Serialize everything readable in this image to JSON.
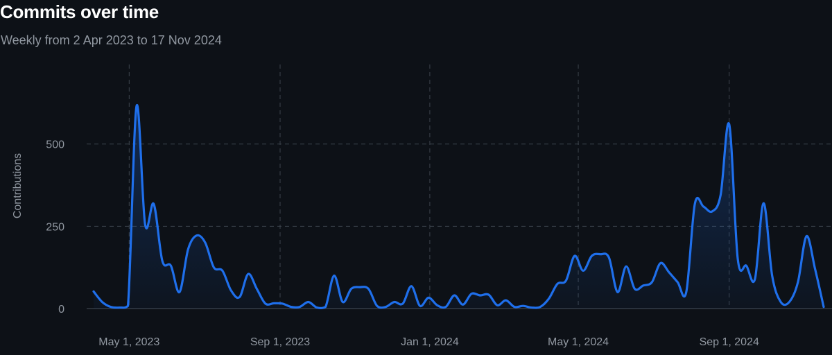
{
  "header": {
    "title": "Commits over time",
    "subtitle": "Weekly from 2 Apr 2023 to 17 Nov 2024"
  },
  "colors": {
    "background": "#0d1117",
    "line": "#1f6feb",
    "area_fill": "#1f6feb",
    "grid": "#3d444d",
    "axis_text": "#9198a1",
    "baseline": "#3d444d"
  },
  "chart_data": {
    "type": "area",
    "title": "Commits over time",
    "subtitle": "Weekly from 2 Apr 2023 to 17 Nov 2024",
    "xlabel": "",
    "ylabel": "Contributions",
    "x_range": [
      "2023-04-02",
      "2024-11-17"
    ],
    "ylim": [
      0,
      650
    ],
    "y_ticks": [
      0,
      250,
      500
    ],
    "x_ticks": [
      {
        "date": "2023-05-01",
        "label": "May 1, 2023"
      },
      {
        "date": "2023-09-01",
        "label": "Sep 1, 2023"
      },
      {
        "date": "2024-01-01",
        "label": "Jan 1, 2024"
      },
      {
        "date": "2024-05-01",
        "label": "May 1, 2024"
      },
      {
        "date": "2024-09-01",
        "label": "Sep 1, 2024"
      }
    ],
    "grid": {
      "horizontal": true,
      "vertical": true,
      "style": "dashed"
    },
    "legend": "none",
    "series": [
      {
        "points": [
          [
            "2023-04-02",
            52
          ],
          [
            "2023-04-09",
            20
          ],
          [
            "2023-04-16",
            5
          ],
          [
            "2023-04-23",
            3
          ],
          [
            "2023-04-30",
            8
          ],
          [
            "2023-05-07",
            615
          ],
          [
            "2023-05-14",
            255
          ],
          [
            "2023-05-21",
            318
          ],
          [
            "2023-05-28",
            145
          ],
          [
            "2023-06-04",
            130
          ],
          [
            "2023-06-11",
            50
          ],
          [
            "2023-06-18",
            180
          ],
          [
            "2023-06-25",
            222
          ],
          [
            "2023-07-02",
            200
          ],
          [
            "2023-07-09",
            125
          ],
          [
            "2023-07-16",
            115
          ],
          [
            "2023-07-23",
            55
          ],
          [
            "2023-07-30",
            35
          ],
          [
            "2023-08-06",
            105
          ],
          [
            "2023-08-13",
            60
          ],
          [
            "2023-08-20",
            15
          ],
          [
            "2023-08-27",
            16
          ],
          [
            "2023-09-03",
            15
          ],
          [
            "2023-09-10",
            5
          ],
          [
            "2023-09-17",
            5
          ],
          [
            "2023-09-24",
            20
          ],
          [
            "2023-10-01",
            3
          ],
          [
            "2023-10-08",
            5
          ],
          [
            "2023-10-15",
            100
          ],
          [
            "2023-10-22",
            20
          ],
          [
            "2023-10-29",
            60
          ],
          [
            "2023-11-05",
            65
          ],
          [
            "2023-11-12",
            60
          ],
          [
            "2023-11-19",
            8
          ],
          [
            "2023-11-26",
            5
          ],
          [
            "2023-12-03",
            20
          ],
          [
            "2023-12-10",
            15
          ],
          [
            "2023-12-17",
            68
          ],
          [
            "2023-12-24",
            8
          ],
          [
            "2023-12-31",
            33
          ],
          [
            "2024-01-07",
            10
          ],
          [
            "2024-01-14",
            5
          ],
          [
            "2024-01-21",
            40
          ],
          [
            "2024-01-28",
            12
          ],
          [
            "2024-02-04",
            45
          ],
          [
            "2024-02-11",
            40
          ],
          [
            "2024-02-18",
            42
          ],
          [
            "2024-02-25",
            10
          ],
          [
            "2024-03-03",
            25
          ],
          [
            "2024-03-10",
            5
          ],
          [
            "2024-03-17",
            8
          ],
          [
            "2024-03-24",
            3
          ],
          [
            "2024-03-31",
            5
          ],
          [
            "2024-04-07",
            30
          ],
          [
            "2024-04-14",
            75
          ],
          [
            "2024-04-21",
            85
          ],
          [
            "2024-04-28",
            160
          ],
          [
            "2024-05-05",
            115
          ],
          [
            "2024-05-12",
            160
          ],
          [
            "2024-05-19",
            165
          ],
          [
            "2024-05-26",
            155
          ],
          [
            "2024-06-02",
            50
          ],
          [
            "2024-06-09",
            128
          ],
          [
            "2024-06-16",
            60
          ],
          [
            "2024-06-23",
            70
          ],
          [
            "2024-06-30",
            80
          ],
          [
            "2024-07-07",
            138
          ],
          [
            "2024-07-14",
            110
          ],
          [
            "2024-07-21",
            80
          ],
          [
            "2024-07-28",
            50
          ],
          [
            "2024-08-04",
            318
          ],
          [
            "2024-08-11",
            310
          ],
          [
            "2024-08-18",
            295
          ],
          [
            "2024-08-25",
            345
          ],
          [
            "2024-09-01",
            560
          ],
          [
            "2024-09-08",
            150
          ],
          [
            "2024-09-15",
            130
          ],
          [
            "2024-09-22",
            90
          ],
          [
            "2024-09-29",
            320
          ],
          [
            "2024-10-06",
            100
          ],
          [
            "2024-10-13",
            20
          ],
          [
            "2024-10-20",
            20
          ],
          [
            "2024-10-27",
            80
          ],
          [
            "2024-11-03",
            220
          ],
          [
            "2024-11-10",
            120
          ],
          [
            "2024-11-17",
            5
          ]
        ]
      }
    ]
  }
}
